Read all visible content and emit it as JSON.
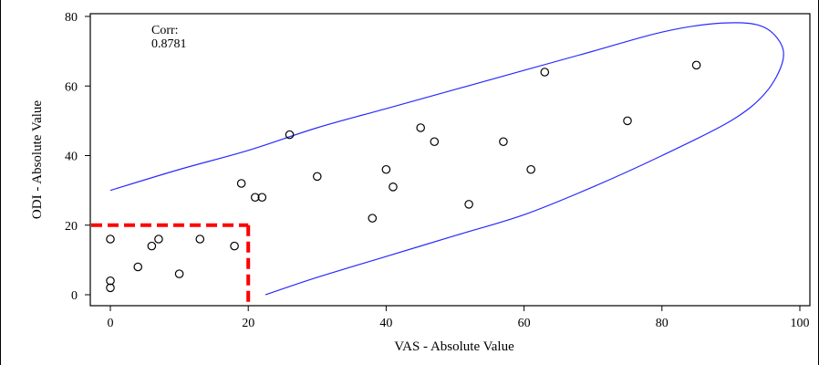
{
  "chart_data": {
    "type": "scatter",
    "xlabel": "VAS - Absolute Value",
    "ylabel": "ODI - Absolute Value",
    "xlim": [
      0,
      100
    ],
    "ylim": [
      0,
      80
    ],
    "x_ticks": [
      "0",
      "20",
      "40",
      "60",
      "80",
      "100"
    ],
    "y_ticks": [
      "0",
      "20",
      "40",
      "60",
      "80"
    ],
    "grid": false,
    "annotation": {
      "label": "Corr:",
      "value": "0.8781"
    },
    "marker": "open-circle",
    "points": [
      {
        "x": 0,
        "y": 2
      },
      {
        "x": 0,
        "y": 4
      },
      {
        "x": 0,
        "y": 16
      },
      {
        "x": 4,
        "y": 8
      },
      {
        "x": 6,
        "y": 14
      },
      {
        "x": 7,
        "y": 16
      },
      {
        "x": 10,
        "y": 6
      },
      {
        "x": 13,
        "y": 16
      },
      {
        "x": 18,
        "y": 14
      },
      {
        "x": 19,
        "y": 32
      },
      {
        "x": 21,
        "y": 28
      },
      {
        "x": 22,
        "y": 28
      },
      {
        "x": 26,
        "y": 46
      },
      {
        "x": 30,
        "y": 34
      },
      {
        "x": 38,
        "y": 22
      },
      {
        "x": 40,
        "y": 36
      },
      {
        "x": 41,
        "y": 31
      },
      {
        "x": 45,
        "y": 48
      },
      {
        "x": 47,
        "y": 44
      },
      {
        "x": 52,
        "y": 26
      },
      {
        "x": 57,
        "y": 44
      },
      {
        "x": 61,
        "y": 36
      },
      {
        "x": 63,
        "y": 64
      },
      {
        "x": 75,
        "y": 50
      },
      {
        "x": 85,
        "y": 66
      }
    ],
    "ellipse": {
      "color": "#2a2aff",
      "path": [
        [
          0,
          30
        ],
        [
          10,
          36
        ],
        [
          20,
          41.5
        ],
        [
          30,
          48
        ],
        [
          40,
          53.5
        ],
        [
          50,
          59
        ],
        [
          60,
          64.5
        ],
        [
          70,
          70
        ],
        [
          80,
          75.5
        ],
        [
          88,
          78
        ],
        [
          94,
          77.5
        ],
        [
          97,
          73
        ],
        [
          97.5,
          67
        ],
        [
          95,
          58
        ],
        [
          90,
          50
        ],
        [
          80,
          40
        ],
        [
          70,
          31
        ],
        [
          60,
          23
        ],
        [
          50,
          17
        ],
        [
          40,
          11
        ],
        [
          30,
          5
        ],
        [
          22.5,
          0
        ]
      ]
    },
    "reference_box": {
      "x_max": 20,
      "y_max": 20,
      "color": "#ff0000",
      "style": "dashed"
    }
  }
}
